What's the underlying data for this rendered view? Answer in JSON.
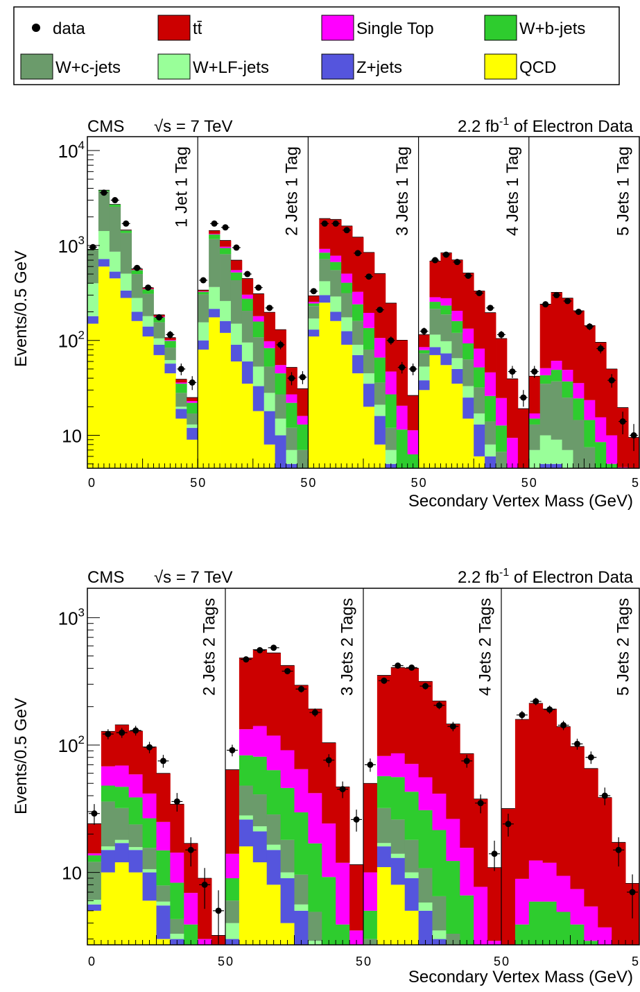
{
  "legend": {
    "entries": [
      {
        "key": "data",
        "label": "data",
        "kind": "marker",
        "color": "#000000"
      },
      {
        "key": "ttbar",
        "label": "tt̄",
        "kind": "box",
        "color": "#cc0000"
      },
      {
        "key": "single_top",
        "label": "Single Top",
        "kind": "box",
        "color": "#ff00ff"
      },
      {
        "key": "wbb",
        "label": "W+b-jets",
        "kind": "box",
        "color": "#2ecc2e"
      },
      {
        "key": "wcc",
        "label": "W+c-jets",
        "kind": "box",
        "color": "#6b9b6b"
      },
      {
        "key": "wlf",
        "label": "W+LF-jets",
        "kind": "box",
        "color": "#99ff99"
      },
      {
        "key": "zjets",
        "label": "Z+jets",
        "kind": "box",
        "color": "#5555dd"
      },
      {
        "key": "qcd",
        "label": "QCD",
        "kind": "box",
        "color": "#ffff00"
      }
    ]
  },
  "stack_order": [
    "qcd",
    "zjets",
    "wlf",
    "wcc",
    "wbb",
    "single_top",
    "ttbar"
  ],
  "chart_data": [
    {
      "type": "bar",
      "stacked": true,
      "log_y": true,
      "cms_label": "CMS",
      "energy_label": "√s = 7 TeV",
      "lumi_prefix": "2.2 fb",
      "lumi_sup": "-1",
      "lumi_suffix": " of Electron Data",
      "ylabel": "Events/0.5 GeV",
      "xlabel": "Secondary Vertex Mass (GeV)",
      "ylim": [
        4.5,
        14000
      ],
      "y_ticks": [
        {
          "value": 10,
          "base": "10",
          "exp": ""
        },
        {
          "value": 100,
          "base": "10",
          "exp": "2"
        },
        {
          "value": 1000,
          "base": "10",
          "exp": "3"
        },
        {
          "value": 10000,
          "base": "10",
          "exp": "4"
        }
      ],
      "x_tick_labels": [
        "0",
        "5",
        "0",
        "5",
        "0",
        "5",
        "0",
        "5",
        "0",
        "5"
      ],
      "panels": [
        {
          "label": "1 Jet  1 Tag",
          "components": {
            "qcd": [
              150,
              600,
              450,
              280,
              160,
              110,
              70,
              45,
              15,
              9
            ],
            "zjets": [
              30,
              120,
              80,
              55,
              40,
              30,
              20,
              12,
              4,
              3
            ],
            "wlf": [
              220,
              700,
              330,
              170,
              80,
              40,
              15,
              5,
              1,
              1
            ],
            "wcc": [
              500,
              2300,
              1700,
              850,
              220,
              130,
              50,
              22,
              8,
              4
            ],
            "wbb": [
              10,
              90,
              130,
              85,
              50,
              35,
              20,
              15,
              7,
              5
            ],
            "single_top": [
              1,
              5,
              8,
              7,
              5,
              4,
              3,
              2,
              1,
              1
            ],
            "ttbar": [
              1,
              5,
              10,
              12,
              12,
              10,
              8,
              6,
              3,
              2
            ]
          },
          "data": [
            960,
            3600,
            3000,
            1700,
            580,
            360,
            175,
            115,
            50,
            36
          ]
        },
        {
          "label": "2 Jets 1 Tag",
          "components": {
            "qcd": [
              80,
              175,
              120,
              60,
              35,
              18,
              8,
              4,
              2,
              1
            ],
            "zjets": [
              20,
              40,
              40,
              30,
              25,
              15,
              10,
              6,
              3,
              2
            ],
            "wlf": [
              55,
              150,
              100,
              60,
              35,
              20,
              10,
              5,
              2,
              1
            ],
            "wcc": [
              150,
              800,
              550,
              280,
              110,
              55,
              25,
              12,
              5,
              3
            ],
            "wbb": [
              20,
              140,
              130,
              90,
              70,
              50,
              30,
              18,
              10,
              6
            ],
            "single_top": [
              4,
              20,
              30,
              30,
              28,
              22,
              15,
              10,
              5,
              3
            ],
            "ttbar": [
              10,
              110,
              160,
              150,
              145,
              130,
              100,
              75,
              25,
              15
            ]
          },
          "data": [
            430,
            1700,
            1550,
            950,
            500,
            360,
            220,
            90,
            40,
            41
          ]
        },
        {
          "label": "3 Jets 1 Tag",
          "components": {
            "qcd": [
              110,
              250,
              160,
              90,
              45,
              20,
              8,
              2,
              0.5,
              0.3
            ],
            "zjets": [
              20,
              50,
              40,
              35,
              25,
              15,
              8,
              3,
              1,
              0.5
            ],
            "wlf": [
              40,
              120,
              90,
              50,
              20,
              10,
              5,
              2,
              1,
              0.5
            ],
            "wcc": [
              60,
              300,
              260,
              140,
              70,
              35,
              15,
              5,
              2,
              1
            ],
            "wbb": [
              15,
              120,
              120,
              90,
              80,
              55,
              30,
              15,
              7,
              4
            ],
            "single_top": [
              10,
              80,
              110,
              100,
              85,
              60,
              40,
              20,
              9,
              5
            ],
            "ttbar": [
              40,
              1000,
              1100,
              1100,
              900,
              650,
              400,
              200,
              80,
              15
            ]
          },
          "data": [
            330,
            1700,
            1700,
            1450,
            830,
            470,
            210,
            100,
            52,
            50
          ]
        },
        {
          "label": "4 Jets 1 Tag",
          "components": {
            "qcd": [
              30,
              70,
              55,
              35,
              15,
              6,
              2,
              0.7,
              0.2,
              0.1
            ],
            "zjets": [
              8,
              15,
              18,
              15,
              10,
              7,
              4,
              2,
              0.7,
              0.3
            ],
            "wlf": [
              15,
              30,
              25,
              15,
              8,
              4,
              2,
              1,
              0.5,
              0.2
            ],
            "wcc": [
              20,
              100,
              90,
              55,
              30,
              15,
              6,
              3,
              1,
              0.5
            ],
            "wbb": [
              6,
              40,
              45,
              40,
              30,
              20,
              12,
              6,
              2,
              1
            ],
            "single_top": [
              6,
              30,
              45,
              45,
              40,
              30,
              20,
              12,
              5,
              2
            ],
            "ttbar": [
              30,
              400,
              560,
              500,
              380,
              250,
              150,
              80,
              30,
              15
            ]
          },
          "data": [
            125,
            700,
            800,
            670,
            480,
            315,
            220,
            115,
            47,
            25
          ]
        },
        {
          "label": "5 Jets 1 Tag",
          "components": {
            "qcd": [
              3,
              3,
              3,
              2,
              1,
              0.5,
              0.3,
              0.2,
              0.1,
              0.1
            ],
            "zjets": [
              1,
              2,
              2,
              2,
              1.5,
              1,
              0.7,
              0.5,
              0.3,
              0.2
            ],
            "wlf": [
              3,
              5,
              4,
              3,
              2,
              1,
              0.5,
              0.3,
              0.2,
              0.1
            ],
            "wcc": [
              6,
              25,
              28,
              18,
              10,
              5,
              2,
              1,
              0.5,
              0.3
            ],
            "wbb": [
              2,
              8,
              12,
              12,
              10,
              7,
              5,
              3,
              1.5,
              0.8
            ],
            "single_top": [
              2,
              8,
              12,
              12,
              11,
              9,
              7,
              5,
              2,
              1
            ],
            "ttbar": [
              25,
              190,
              260,
              230,
              170,
              120,
              80,
              40,
              15,
              7
            ]
          },
          "data": [
            47,
            240,
            300,
            260,
            200,
            140,
            82,
            38,
            14,
            10
          ]
        }
      ]
    },
    {
      "type": "bar",
      "stacked": true,
      "log_y": true,
      "cms_label": "CMS",
      "energy_label": "√s = 7 TeV",
      "lumi_prefix": "2.2 fb",
      "lumi_sup": "-1",
      "lumi_suffix": " of Electron Data",
      "ylabel": "Events/0.5 GeV",
      "xlabel": "Secondary Vertex Mass (GeV)",
      "ylim": [
        2.7,
        1700
      ],
      "y_ticks": [
        {
          "value": 10,
          "base": "10",
          "exp": ""
        },
        {
          "value": 100,
          "base": "10",
          "exp": "2"
        },
        {
          "value": 1000,
          "base": "10",
          "exp": "3"
        }
      ],
      "x_tick_labels": [
        "0",
        "5",
        "0",
        "5",
        "0",
        "5",
        "0",
        "5"
      ],
      "panels": [
        {
          "label": "2 Jets 2 Tags",
          "components": {
            "qcd": [
              5,
              10,
              12,
              10,
              6,
              3,
              1.5,
              0.6,
              0.2,
              0.1
            ],
            "zjets": [
              0.6,
              5,
              5,
              5,
              4,
              2.5,
              1.5,
              0.6,
              0.2,
              0.1
            ],
            "wlf": [
              0.5,
              1,
              1,
              0.8,
              0.6,
              0.4,
              0.3,
              0.2,
              0.1,
              0.1
            ],
            "wcc": [
              6,
              20,
              14,
              8,
              5,
              2,
              1,
              0.5,
              0.2,
              0.1
            ],
            "wbb": [
              1.5,
              12,
              15,
              15,
              11,
              7,
              4,
              2,
              0.8,
              0.3
            ],
            "single_top": [
              0.5,
              20,
              22,
              20,
              15,
              10,
              6,
              3,
              1.5,
              0.5
            ],
            "ttbar": [
              10,
              60,
              75,
              70,
              55,
              35,
              20,
              10,
              6,
              2
            ]
          },
          "data": [
            29,
            122,
            125,
            130,
            96,
            75,
            36,
            15,
            8,
            5
          ]
        },
        {
          "label": "3 Jets 2 Tags",
          "components": {
            "qcd": [
              2,
              16,
              12,
              8,
              4,
              2,
              1,
              0.4,
              0.2,
              0.1
            ],
            "zjets": [
              1,
              10,
              9,
              7,
              5,
              3,
              1.5,
              0.6,
              0.2,
              0.1
            ],
            "wlf": [
              1,
              2,
              2,
              1.5,
              1,
              0.6,
              0.4,
              0.2,
              0.1,
              0.1
            ],
            "wcc": [
              2,
              20,
              18,
              12,
              8,
              4,
              2,
              1,
              0.4,
              0.2
            ],
            "wbb": [
              3,
              35,
              40,
              35,
              28,
              20,
              12,
              7,
              3,
              1
            ],
            "single_top": [
              5,
              50,
              60,
              55,
              45,
              35,
              25,
              15,
              8,
              2
            ],
            "ttbar": [
              50,
              350,
              420,
              410,
              330,
              230,
              150,
              80,
              35,
              8
            ]
          },
          "data": [
            91,
            470,
            555,
            580,
            380,
            275,
            180,
            76,
            45,
            26
          ]
        },
        {
          "label": "4 Jets 2 Tags",
          "components": {
            "qcd": [
              1,
              11,
              8,
              5,
              2,
              1,
              0.5,
              0.2,
              0.1,
              0.1
            ],
            "zjets": [
              0.5,
              5,
              5,
              4,
              3,
              2,
              1,
              0.5,
              0.2,
              0.1
            ],
            "wlf": [
              0.5,
              1,
              1,
              1,
              0.8,
              0.5,
              0.3,
              0.2,
              0.1,
              0.1
            ],
            "wcc": [
              1,
              15,
              12,
              8,
              5,
              3,
              1.5,
              0.7,
              0.3,
              0.1
            ],
            "wbb": [
              2,
              25,
              30,
              25,
              20,
              15,
              9,
              5,
              2,
              0.5
            ],
            "single_top": [
              5,
              25,
              30,
              28,
              25,
              20,
              14,
              9,
              5,
              2
            ],
            "ttbar": [
              40,
              270,
              320,
              330,
              260,
              180,
              120,
              70,
              30,
              8
            ]
          },
          "data": [
            70,
            320,
            420,
            405,
            290,
            205,
            140,
            75,
            35,
            14
          ]
        },
        {
          "label": "5 Jets 2 Tags",
          "components": {
            "qcd": [
              0.1,
              0.1,
              0.1,
              0.1,
              0.1,
              0.1,
              0.1,
              0.1,
              0.1,
              0.1
            ],
            "zjets": [
              0.1,
              0.1,
              0.1,
              0.1,
              0.1,
              0.1,
              0.1,
              0.1,
              0.1,
              0.1
            ],
            "wlf": [
              0.1,
              0.1,
              0.1,
              0.1,
              0.1,
              0.1,
              0.1,
              0.1,
              0.1,
              0.1
            ],
            "wcc": [
              0.1,
              0.1,
              0.1,
              0.1,
              0.1,
              0.1,
              0.1,
              0.1,
              0.1,
              0.1
            ],
            "wbb": [
              0.3,
              3.5,
              5.5,
              5.5,
              4.5,
              3.5,
              2.5,
              1.5,
              0.8,
              0.3
            ],
            "single_top": [
              1,
              5,
              6.5,
              6,
              4.5,
              3.5,
              2.5,
              1.8,
              1,
              0.5
            ],
            "ttbar": [
              30,
              150,
              200,
              180,
              130,
              90,
              60,
              35,
              15,
              7
            ]
          },
          "data": [
            24,
            172,
            220,
            190,
            143,
            102,
            80,
            40,
            15,
            7
          ]
        }
      ]
    }
  ]
}
